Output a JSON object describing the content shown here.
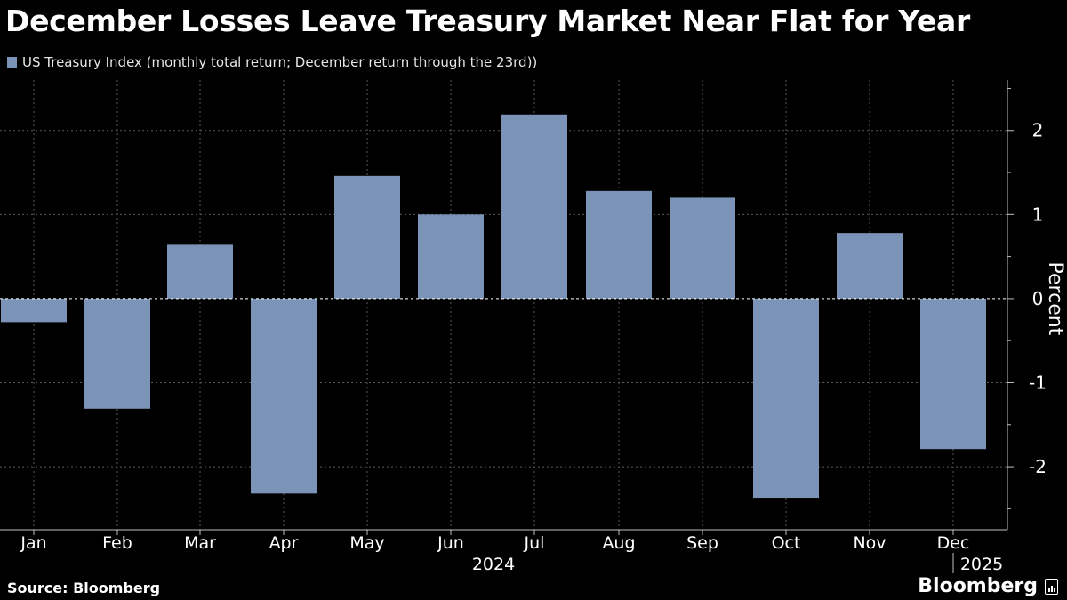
{
  "header": {
    "title": "December Losses Leave Treasury Market Near Flat for Year"
  },
  "footer": {
    "source": "Source: Bloomberg",
    "brand": "Bloomberg"
  },
  "colors": {
    "background": "#000000",
    "bar": "#7b93b6",
    "grid": "#5a5a5a",
    "text": "#ffffff"
  },
  "chart_data": {
    "type": "bar",
    "legend": "US Treasury Index (monthly total return; December return through the 23rd))",
    "legend_placement": "top-left",
    "categories": [
      "Jan",
      "Feb",
      "Mar",
      "Apr",
      "May",
      "Jun",
      "Jul",
      "Aug",
      "Sep",
      "Oct",
      "Nov",
      "Dec"
    ],
    "values": [
      -0.28,
      -1.31,
      0.64,
      -2.32,
      1.46,
      1.0,
      2.19,
      1.28,
      1.2,
      -2.37,
      0.78,
      -1.79
    ],
    "ylabel": "Percent",
    "ylim": [
      -2.75,
      2.6
    ],
    "yticks": [
      2,
      1,
      0,
      -1,
      -2
    ],
    "year_labels": [
      "2024",
      "2025"
    ],
    "grid": true,
    "y_axis_side": "right"
  }
}
